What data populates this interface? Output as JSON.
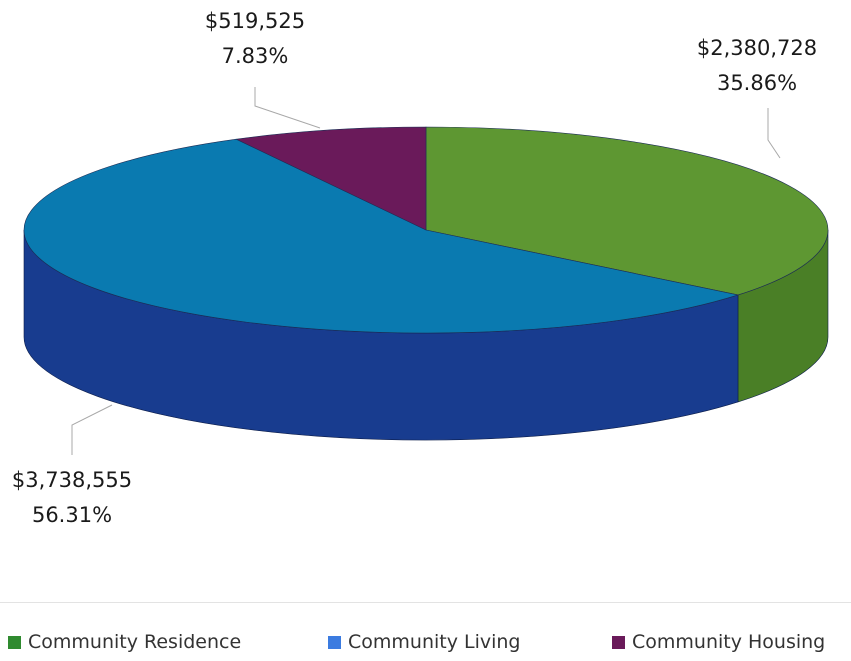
{
  "chart_data": {
    "type": "pie",
    "style": "3d-pie",
    "title": "",
    "slices": [
      {
        "name": "Community Residence",
        "value": 2380728,
        "value_label": "$2,380,728",
        "percent_label": "35.86%",
        "color": "#5e9732",
        "side_color": "#4a7f26"
      },
      {
        "name": "Community Living",
        "value": 3738555,
        "value_label": "$3,738,555",
        "percent_label": "56.31%",
        "color": "#0a7ab0",
        "side_color": "#183c8f"
      },
      {
        "name": "Community Housing",
        "value": 519525,
        "value_label": "$519,525",
        "percent_label": "7.83%",
        "color": "#6a1a5a",
        "side_color": "#4e1242"
      }
    ],
    "legend_position": "bottom"
  },
  "legend": {
    "items": [
      {
        "label": "Community Residence",
        "color": "#2f8a2f"
      },
      {
        "label": "Community Living",
        "color": "#3b7be0"
      },
      {
        "label": "Community Housing",
        "color": "#6a1a5a"
      }
    ]
  }
}
